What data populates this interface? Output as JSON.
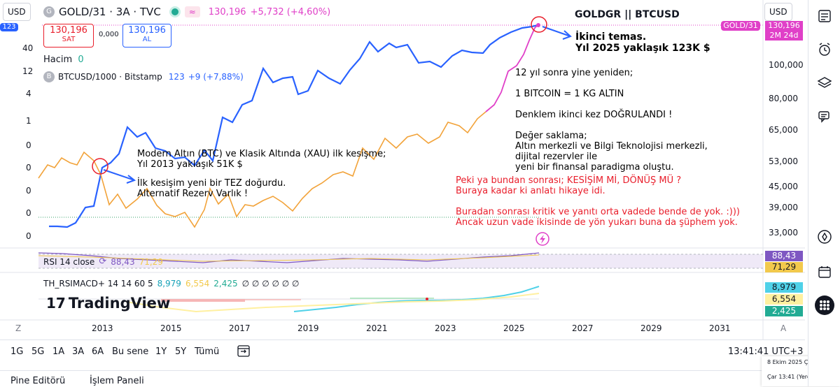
{
  "header": {
    "currency_left": "USD",
    "currency_right": "USD",
    "symbol_title": "GOLD/31 · 3A · TVC",
    "price": "130,196",
    "change": "+5,732 (+4,60%)",
    "sell_price": "130,196",
    "sell_label": "SAT",
    "spread": "0,000",
    "buy_price": "130,196",
    "buy_label": "AL",
    "badge_left": "123"
  },
  "volume": {
    "label": "Hacim",
    "value": "0"
  },
  "overlay_symbol": {
    "title": "BTCUSD/1000 · Bitstamp",
    "value": "123",
    "change": "+9 (+7,88%)"
  },
  "chart_title": "GOLDGR || BTCUSD",
  "right_axis": [
    "100,000",
    "80,000",
    "65,000",
    "53,000",
    "45,000",
    "39,000",
    "33,000"
  ],
  "left_axis": [
    "40",
    "12",
    "4",
    "1",
    "0",
    "0",
    "0",
    "0",
    "0"
  ],
  "right_label_gold": "GOLD/31",
  "right_label_price": "130,196",
  "right_label_time": "2M 24d",
  "annotations": {
    "second_contact": "İkinci temas.\nYıl 2025 yaklaşık 123K $",
    "main_note": "12 yıl sonra yine yeniden;\n\n1 BITCOIN = 1 KG ALTIN\n\nDenklem ikinci kez DOĞRULANDI !\n\nDeğer saklama;\nAltın merkezli ve Bilgi Teknolojisi merkezli,\ndijital rezervler ile\nyeni bir finansal paradigma oluştu.",
    "first_cross": "Modern Altın (BTC) ve Klasik Altında (XAU) ilk kesişme;\nYıl 2013 yaklaşık 51K $",
    "thesis": "İlk kesişim yeni bir TEZ doğurdu.\nAlternatif Rezerv Varlık !",
    "red_question": "Peki ya bundan sonrası; KESİŞİM Mİ, DÖNÜŞ MÜ ?\nBuraya kadar ki anlatı hikaye idi.\n\nBuradan sonrası kritik ve yanıtı orta vadede bende de yok. :)))\nAncak uzun vade ikisinde de yön yukarı buna da şüphem yok."
  },
  "rsi": {
    "label": "RSI 14 close",
    "value1": "88,43",
    "value2": "71,29",
    "right1": "88,43",
    "right2": "71,29"
  },
  "macd": {
    "label": "TH_RSIMACD+ 14 14 60 5",
    "v1": "8,979",
    "v2": "6,554",
    "v3": "2,425",
    "nulls": "∅ ∅ ∅ ∅ ∅ ∅",
    "right1": "8,979",
    "right2": "6,554",
    "right3": "2,425"
  },
  "watermark": "TradingView",
  "x_axis": [
    "2013",
    "2015",
    "2017",
    "2019",
    "2021",
    "2023",
    "2025",
    "2027",
    "2029",
    "2031"
  ],
  "x_axis_left_btn": "Z",
  "x_axis_right_btn": "A",
  "timeframes": [
    "1G",
    "5G",
    "1A",
    "3A",
    "6A",
    "Bu sene",
    "1Y",
    "5Y",
    "Tümü"
  ],
  "clock": "13:41:41 UTC+3",
  "bottom_tabs": [
    "Pine Editörü",
    "İşlem Paneli"
  ],
  "tooltip": {
    "date": "8 Ekim 2025 Çarşamba",
    "time": "Çar 13:41 (Yerel saat)"
  },
  "colors": {
    "btc": "#2962ff",
    "gold_orange": "#f2a33a",
    "gold_pink": "#e040c8",
    "circle": "#e91e2b",
    "rsi_fill": "#e8e0f5",
    "sell": "#e91e2b",
    "buy": "#2962ff"
  },
  "chart_data": {
    "type": "line",
    "series": [
      {
        "name": "GOLD/31",
        "color": "#f2a33a"
      },
      {
        "name": "BTCUSD/1000",
        "color": "#2962ff"
      }
    ],
    "x": [
      "2013",
      "2015",
      "2017",
      "2019",
      "2021",
      "2023",
      "2025"
    ]
  }
}
